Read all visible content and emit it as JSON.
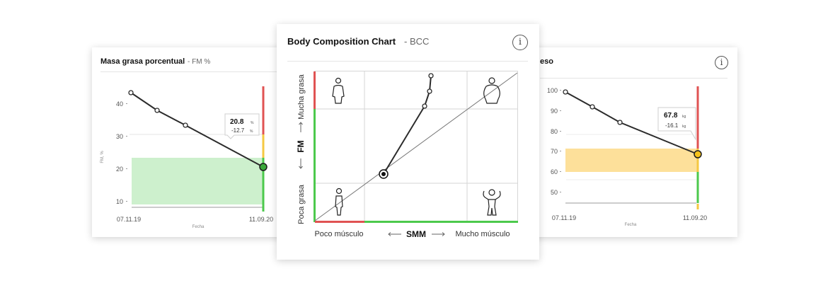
{
  "fm_card": {
    "title": "Masa grasa porcentual",
    "subtitle": "- FM %",
    "y_ticks": [
      "40",
      "30",
      "20",
      "10"
    ],
    "y_axis_label": "FM, %",
    "x_start": "07.11.19",
    "x_end": "11.09.20",
    "x_axis_label": "Fecha",
    "tooltip_value": "20.8",
    "tooltip_unit": "%",
    "tooltip_delta": "-12.7",
    "tooltip_delta_unit": "%"
  },
  "weight_card": {
    "title": "eso",
    "y_ticks": [
      "100",
      "90",
      "80",
      "70",
      "60",
      "50"
    ],
    "x_start": "07.11.19",
    "x_end": "11.09.20",
    "x_axis_label": "Fecha",
    "tooltip_value": "67.8",
    "tooltip_unit": "kg",
    "tooltip_delta": "-16.1",
    "tooltip_delta_unit": "kg"
  },
  "bcc_card": {
    "title": "Body Composition Chart",
    "subtitle": "- BCC",
    "y_high": "Mucha grasa",
    "y_axis": "FM",
    "y_low": "Poca grasa",
    "x_low": "Poco músculo",
    "x_axis": "SMM",
    "x_high": "Mucho músculo"
  },
  "icons": {
    "info": "info-icon",
    "body_top_left": "slim-person-icon",
    "body_top_right": "obese-person-icon",
    "body_bottom_left": "thin-person-icon",
    "body_bottom_right": "muscular-person-icon"
  },
  "colors": {
    "line": "#2b2b2b",
    "green_band": "#cdf0cd",
    "yellow_band": "#fde09a",
    "green": "#4cc94c",
    "yellow": "#f5c842",
    "red": "#e05353",
    "marker_green": "#3aa83a",
    "marker_yellow": "#f5c11a"
  },
  "chart_data": [
    {
      "type": "line",
      "title": "Masa grasa porcentual",
      "xlabel": "Fecha",
      "ylabel": "FM, %",
      "x": [
        "07.11.19",
        "",
        "",
        "11.09.20"
      ],
      "series": [
        {
          "values": [
            43,
            38,
            33,
            20.8
          ]
        }
      ],
      "ylim": [
        8,
        48
      ],
      "highlight_band": [
        9.5,
        23.5
      ]
    },
    {
      "type": "line",
      "title": "eso",
      "xlabel": "Fecha",
      "x": [
        "07.11.19",
        "",
        "",
        "11.09.20"
      ],
      "series": [
        {
          "values": [
            99,
            92,
            84,
            67.8
          ]
        }
      ],
      "ylim": [
        44,
        102
      ],
      "highlight_band": [
        60,
        71
      ]
    },
    {
      "type": "scatter",
      "title": "Body Composition Chart",
      "xlabel": "SMM",
      "ylabel": "FM",
      "xlim": [
        0,
        100
      ],
      "ylim": [
        0,
        100
      ],
      "series": [
        {
          "x": [
            34,
            55,
            56,
            57,
            57.5
          ],
          "y": [
            30,
            75,
            87,
            93,
            98
          ]
        }
      ]
    }
  ]
}
